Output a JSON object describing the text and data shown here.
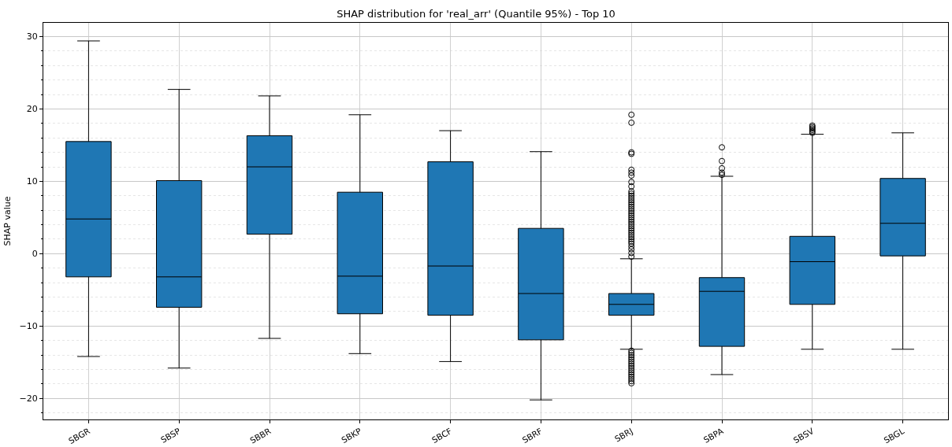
{
  "chart_data": {
    "type": "box",
    "title": "SHAP distribution for 'real_arr' (Quantile 95%) - Top 10",
    "ylabel": "SHAP value",
    "categories": [
      "SBGR",
      "SBSP",
      "SBBR",
      "SBKP",
      "SBCF",
      "SBRF",
      "SBRJ",
      "SBPA",
      "SBSV",
      "SBGL"
    ],
    "color": "#1f77b4",
    "marker": "circle",
    "grid": true,
    "boxes": [
      {
        "low": -14.2,
        "q1": -3.2,
        "median": 4.8,
        "q3": 15.5,
        "high": 29.4
      },
      {
        "low": -15.8,
        "q1": -7.4,
        "median": -3.2,
        "q3": 10.1,
        "high": 22.7
      },
      {
        "low": -11.7,
        "q1": 2.7,
        "median": 12.0,
        "q3": 16.3,
        "high": 21.8
      },
      {
        "low": -13.8,
        "q1": -8.3,
        "median": -3.1,
        "q3": 8.5,
        "high": 19.2
      },
      {
        "low": -14.9,
        "q1": -8.5,
        "median": -1.7,
        "q3": 12.7,
        "high": 17.0
      },
      {
        "low": -20.2,
        "q1": -11.9,
        "median": -5.5,
        "q3": 3.5,
        "high": 14.1
      },
      {
        "low": -13.2,
        "q1": -8.5,
        "median": -7.0,
        "q3": -5.5,
        "high": -0.7,
        "outliers": [
          19.2,
          18.1,
          14.0,
          13.8,
          11.6,
          11.2,
          10.8,
          9.9,
          9.3,
          8.6,
          8.3,
          8.0,
          7.7,
          7.4,
          7.1,
          6.8,
          6.5,
          6.2,
          5.9,
          5.6,
          5.3,
          5.0,
          4.7,
          4.4,
          4.1,
          3.8,
          3.5,
          3.2,
          2.9,
          2.6,
          2.3,
          2.0,
          1.7,
          1.4,
          1.0,
          0.6,
          0.1,
          -0.4,
          -13.4,
          -13.7,
          -14.0,
          -14.3,
          -14.6,
          -14.9,
          -15.2,
          -15.5,
          -15.8,
          -16.1,
          -16.4,
          -16.7,
          -17.0,
          -17.3,
          -17.6,
          -17.9
        ]
      },
      {
        "low": -16.7,
        "q1": -12.8,
        "median": -5.2,
        "q3": -3.3,
        "high": 10.7,
        "outliers": [
          14.7,
          12.8,
          11.8,
          11.2,
          10.9
        ]
      },
      {
        "low": -13.2,
        "q1": -7.0,
        "median": -1.1,
        "q3": 2.4,
        "high": 16.5,
        "outliers": [
          16.7,
          16.9,
          17.1,
          17.3,
          17.5,
          17.7
        ]
      },
      {
        "low": -13.2,
        "q1": -0.3,
        "median": 4.2,
        "q3": 10.4,
        "high": 16.7
      }
    ],
    "ylim": [
      -22.9,
      31.9
    ],
    "yticks": [
      {
        "value": -22,
        "label": null
      },
      -20,
      {
        "value": -18,
        "label": null
      },
      {
        "value": -16,
        "label": null
      },
      {
        "value": -14,
        "label": null
      },
      {
        "value": -12,
        "label": null
      },
      -10,
      {
        "value": -8,
        "label": null
      },
      {
        "value": -6,
        "label": null
      },
      {
        "value": -4,
        "label": null
      },
      {
        "value": -2,
        "label": null
      },
      0,
      {
        "value": 2,
        "label": null
      },
      {
        "value": 4,
        "label": null
      },
      {
        "value": 6,
        "label": null
      },
      {
        "value": 8,
        "label": null
      },
      10,
      {
        "value": 12,
        "label": null
      },
      {
        "value": 14,
        "label": null
      },
      {
        "value": 16,
        "label": null
      },
      {
        "value": 18,
        "label": null
      },
      20,
      {
        "value": 22,
        "label": null
      },
      {
        "value": 24,
        "label": null
      },
      {
        "value": 26,
        "label": null
      },
      {
        "value": 28,
        "label": null
      },
      30
    ]
  }
}
